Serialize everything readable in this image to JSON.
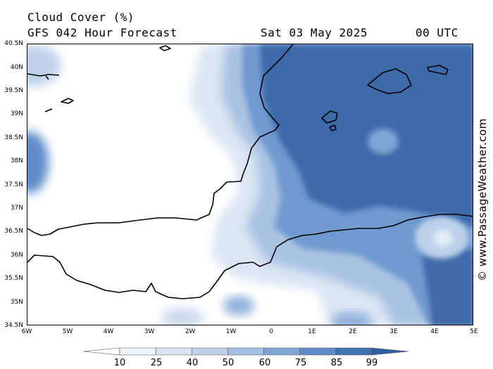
{
  "header": {
    "title": "Cloud Cover (%)",
    "model": "GFS 042 Hour Forecast",
    "date": "Sat 03 May 2025",
    "time": "00 UTC"
  },
  "axes": {
    "lat_labels": [
      "40.5N",
      "40N",
      "39.5N",
      "39N",
      "38.5N",
      "38N",
      "37.5N",
      "37N",
      "36.5N",
      "36N",
      "35.5N",
      "35N",
      "34.5N"
    ],
    "lon_labels": [
      "6W",
      "5W",
      "4W",
      "3W",
      "2W",
      "1W",
      "0",
      "1E",
      "2E",
      "3E",
      "4E",
      "5E"
    ]
  },
  "legend": {
    "ticks": [
      "10",
      "25",
      "40",
      "50",
      "60",
      "75",
      "85",
      "99"
    ],
    "colors": [
      "#ffffff",
      "#eef4fb",
      "#d6e3f2",
      "#bfd2ea",
      "#a4bfe2",
      "#7ea5d6",
      "#5d8cc9",
      "#4071b3",
      "#315f9c"
    ]
  },
  "watermark": "© www.PassageWeather.com"
}
